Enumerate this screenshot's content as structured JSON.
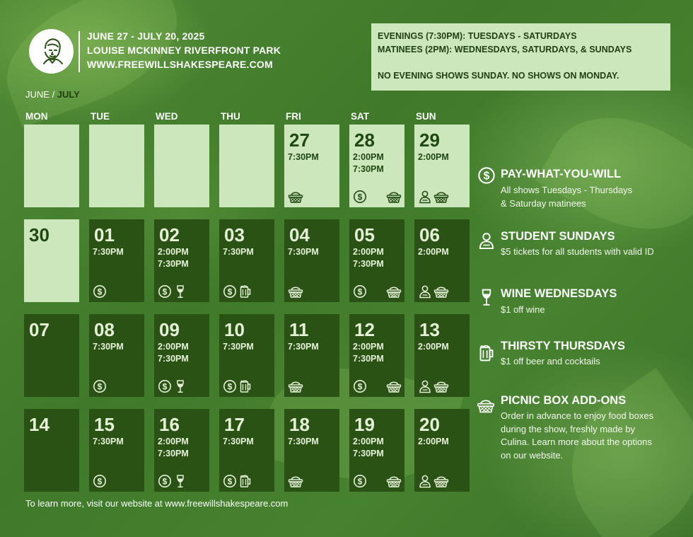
{
  "header": {
    "dates": "JUNE 27 - JULY 20, 2025",
    "venue": "LOUISE MCKINNEY RIVERFRONT PARK",
    "website": "WWW.FREEWILLSHAKESPEARE.COM",
    "logo_icon": "shakespeare-portrait-icon"
  },
  "info_box": {
    "line1": "EVENINGS (7:30PM): TUESDAYS - SATURDAYS",
    "line2": "MATINEES (2PM): WEDNESDAYS, SATURDAYS, & SUNDAYS",
    "line3": "NO EVENING SHOWS SUNDAY. NO SHOWS ON MONDAY."
  },
  "month_label": {
    "june": "JUNE",
    "separator": " / ",
    "july": "JULY"
  },
  "day_names": [
    "MON",
    "TUE",
    "WED",
    "THU",
    "FRI",
    "SAT",
    "SUN"
  ],
  "weeks": [
    [
      {
        "num": "",
        "times": [],
        "icons": [],
        "style": "light"
      },
      {
        "num": "",
        "times": [],
        "icons": [],
        "style": "light"
      },
      {
        "num": "",
        "times": [],
        "icons": [],
        "style": "light"
      },
      {
        "num": "",
        "times": [],
        "icons": [],
        "style": "light"
      },
      {
        "num": "27",
        "times": [
          "7:30PM"
        ],
        "icons": [
          "basket"
        ],
        "style": "light"
      },
      {
        "num": "28",
        "times": [
          "2:00PM",
          "7:30PM"
        ],
        "icons": [
          "dollar",
          "basket"
        ],
        "style": "light"
      },
      {
        "num": "29",
        "times": [
          "2:00PM"
        ],
        "icons": [
          "student",
          "basket"
        ],
        "style": "light"
      }
    ],
    [
      {
        "num": "30",
        "times": [],
        "icons": [],
        "style": "light"
      },
      {
        "num": "01",
        "times": [
          "7:30PM"
        ],
        "icons": [
          "dollar"
        ],
        "style": "dark"
      },
      {
        "num": "02",
        "times": [
          "2:00PM",
          "7:30PM"
        ],
        "icons": [
          "dollar",
          "wine"
        ],
        "style": "dark"
      },
      {
        "num": "03",
        "times": [
          "7:30PM"
        ],
        "icons": [
          "dollar",
          "beer"
        ],
        "style": "dark"
      },
      {
        "num": "04",
        "times": [
          "7:30PM"
        ],
        "icons": [
          "basket"
        ],
        "style": "dark"
      },
      {
        "num": "05",
        "times": [
          "2:00PM",
          "7:30PM"
        ],
        "icons": [
          "dollar",
          "basket"
        ],
        "style": "dark"
      },
      {
        "num": "06",
        "times": [
          "2:00PM"
        ],
        "icons": [
          "student",
          "basket"
        ],
        "style": "dark"
      }
    ],
    [
      {
        "num": "07",
        "times": [],
        "icons": [],
        "style": "dark"
      },
      {
        "num": "08",
        "times": [
          "7:30PM"
        ],
        "icons": [
          "dollar"
        ],
        "style": "dark"
      },
      {
        "num": "09",
        "times": [
          "2:00PM",
          "7:30PM"
        ],
        "icons": [
          "dollar",
          "wine"
        ],
        "style": "dark"
      },
      {
        "num": "10",
        "times": [
          "7:30PM"
        ],
        "icons": [
          "dollar",
          "beer"
        ],
        "style": "dark"
      },
      {
        "num": "11",
        "times": [
          "7:30PM"
        ],
        "icons": [
          "basket"
        ],
        "style": "dark"
      },
      {
        "num": "12",
        "times": [
          "2:00PM",
          "7:30PM"
        ],
        "icons": [
          "dollar",
          "basket"
        ],
        "style": "dark"
      },
      {
        "num": "13",
        "times": [
          "2:00PM"
        ],
        "icons": [
          "student",
          "basket"
        ],
        "style": "dark"
      }
    ],
    [
      {
        "num": "14",
        "times": [],
        "icons": [],
        "style": "dark"
      },
      {
        "num": "15",
        "times": [
          "7:30PM"
        ],
        "icons": [
          "dollar"
        ],
        "style": "dark"
      },
      {
        "num": "16",
        "times": [
          "2:00PM",
          "7:30PM"
        ],
        "icons": [
          "dollar",
          "wine"
        ],
        "style": "dark"
      },
      {
        "num": "17",
        "times": [
          "7:30PM"
        ],
        "icons": [
          "dollar",
          "beer"
        ],
        "style": "dark"
      },
      {
        "num": "18",
        "times": [
          "7:30PM"
        ],
        "icons": [
          "basket"
        ],
        "style": "dark"
      },
      {
        "num": "19",
        "times": [
          "2:00PM",
          "7:30PM"
        ],
        "icons": [
          "dollar",
          "basket"
        ],
        "style": "dark"
      },
      {
        "num": "20",
        "times": [
          "2:00PM"
        ],
        "icons": [
          "student",
          "basket"
        ],
        "style": "dark"
      }
    ]
  ],
  "legend": [
    {
      "icon": "dollar",
      "title": "PAY-WHAT-YOU-WILL",
      "lines": [
        "All shows Tuesdays - Thursdays",
        "& Saturday matinees"
      ]
    },
    {
      "icon": "student",
      "title": "STUDENT SUNDAYS",
      "lines": [
        "$5 tickets for all students with valid ID"
      ]
    },
    {
      "icon": "wine",
      "title": "WINE WEDNESDAYS",
      "lines": [
        "$1 off wine"
      ]
    },
    {
      "icon": "beer",
      "title": "THIRSTY THURSDAYS",
      "lines": [
        "$1 off beer and cocktails"
      ]
    },
    {
      "icon": "basket",
      "title": "PICNIC BOX ADD-ONS",
      "lines": [
        "Order in advance to enjoy food boxes",
        "during the show, freshly made by",
        "Culina. Learn more about the options",
        "on our website."
      ]
    }
  ],
  "footer": "To learn more, visit our website at www.freewillshakespeare.com",
  "colors": {
    "light_cell": "#cde7bd",
    "dark_cell": "#2a5214",
    "background": "#46822f"
  }
}
